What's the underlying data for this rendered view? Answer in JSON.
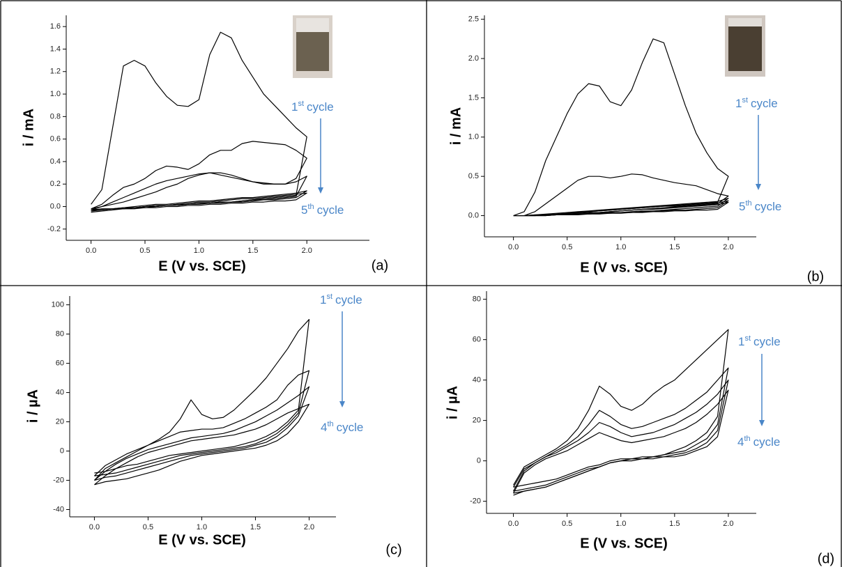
{
  "chart_data": [
    {
      "type": "line",
      "panel_label": "(a)",
      "xlabel": "E (V vs. SCE)",
      "ylabel": "i / mA",
      "line_color": "#000000",
      "x": [
        0,
        0.1,
        0.2,
        0.3,
        0.4,
        0.5,
        0.6,
        0.7,
        0.8,
        0.9,
        1.0,
        1.1,
        1.2,
        1.3,
        1.4,
        1.5,
        1.6,
        1.7,
        1.8,
        1.9,
        2.0,
        1.9,
        1.8,
        1.7,
        1.6,
        1.5,
        1.4,
        1.3,
        1.2,
        1.1,
        1.0,
        0.9,
        0.8,
        0.7,
        0.6,
        0.5,
        0.4,
        0.3,
        0.2,
        0.1,
        0
      ],
      "series": [
        {
          "values": [
            0.02,
            0.15,
            0.7,
            1.25,
            1.3,
            1.25,
            1.1,
            0.98,
            0.9,
            0.89,
            0.95,
            1.35,
            1.55,
            1.5,
            1.3,
            1.15,
            1.0,
            0.9,
            0.8,
            0.7,
            0.62,
            0.1,
            0.09,
            0.08,
            0.07,
            0.06,
            0.05,
            0.04,
            0.04,
            0.03,
            0.03,
            0.02,
            0.01,
            0.01,
            0,
            -0.01,
            -0.01,
            -0.02,
            -0.02,
            -0.03,
            -0.03
          ]
        },
        {
          "values": [
            -0.02,
            0.02,
            0.1,
            0.17,
            0.2,
            0.25,
            0.32,
            0.36,
            0.35,
            0.33,
            0.38,
            0.46,
            0.5,
            0.5,
            0.56,
            0.58,
            0.57,
            0.56,
            0.55,
            0.5,
            0.43,
            0.25,
            0.2,
            0.2,
            0.2,
            0.22,
            0.25,
            0.28,
            0.3,
            0.3,
            0.28,
            0.25,
            0.2,
            0.17,
            0.13,
            0.1,
            0.07,
            0.04,
            0.02,
            0,
            -0.02
          ]
        },
        {
          "values": [
            -0.03,
            0,
            0.04,
            0.08,
            0.12,
            0.16,
            0.2,
            0.23,
            0.25,
            0.27,
            0.29,
            0.3,
            0.28,
            0.26,
            0.24,
            0.22,
            0.21,
            0.2,
            0.2,
            0.22,
            0.27,
            0.09,
            0.08,
            0.07,
            0.06,
            0.06,
            0.05,
            0.04,
            0.04,
            0.03,
            0.03,
            0.02,
            0.02,
            0.01,
            0.01,
            0,
            -0.01,
            -0.01,
            -0.02,
            -0.02,
            -0.03
          ]
        },
        {
          "values": [
            -0.04,
            -0.03,
            -0.02,
            -0.01,
            0,
            0.01,
            0.02,
            0.02,
            0.03,
            0.04,
            0.05,
            0.05,
            0.06,
            0.07,
            0.08,
            0.08,
            0.09,
            0.1,
            0.11,
            0.12,
            0.14,
            0.08,
            0.07,
            0.06,
            0.06,
            0.05,
            0.04,
            0.04,
            0.03,
            0.03,
            0.02,
            0.02,
            0.01,
            0.01,
            0,
            0,
            -0.01,
            -0.02,
            -0.02,
            -0.03,
            -0.04
          ]
        },
        {
          "values": [
            -0.05,
            -0.04,
            -0.03,
            -0.02,
            -0.01,
            0,
            0.01,
            0.01,
            0.02,
            0.03,
            0.04,
            0.04,
            0.05,
            0.06,
            0.07,
            0.07,
            0.08,
            0.09,
            0.1,
            0.11,
            0.12,
            0.06,
            0.05,
            0.05,
            0.04,
            0.04,
            0.03,
            0.03,
            0.02,
            0.02,
            0.01,
            0.01,
            0,
            0,
            -0.01,
            -0.01,
            -0.02,
            -0.02,
            -0.03,
            -0.04,
            -0.05
          ]
        }
      ],
      "xlim": [
        -0.23,
        2.58
      ],
      "ylim": [
        -0.3,
        1.7
      ],
      "xticks": [
        {
          "value": 0,
          "label": "0.0"
        },
        0.5,
        {
          "value": 1,
          "label": "1.0"
        },
        1.5,
        {
          "value": 2,
          "label": "2.0"
        }
      ],
      "yticks": [
        -0.2,
        {
          "value": 0,
          "label": "0.0"
        },
        0.2,
        0.4,
        0.6,
        0.8,
        {
          "value": 1,
          "label": "1.0"
        },
        1.2,
        1.4,
        1.6
      ],
      "annotation": {
        "color": "#4a86c8",
        "start": {
          "number": "1",
          "suffix": "st",
          "text": "cycle"
        },
        "end": {
          "number": "5",
          "suffix": "th",
          "text": "cycle"
        }
      }
    },
    {
      "type": "line",
      "panel_label": "(b)",
      "xlabel": "E (V vs. SCE)",
      "ylabel": "i / mA",
      "line_color": "#000000",
      "x": [
        0,
        0.1,
        0.2,
        0.3,
        0.4,
        0.5,
        0.6,
        0.7,
        0.8,
        0.9,
        1.0,
        1.1,
        1.2,
        1.3,
        1.4,
        1.5,
        1.6,
        1.7,
        1.8,
        1.9,
        2.0,
        1.9,
        1.8,
        1.7,
        1.6,
        1.5,
        1.4,
        1.3,
        1.2,
        1.1,
        1.0,
        0.9,
        0.8,
        0.7,
        0.6,
        0.5,
        0.4,
        0.3,
        0.2,
        0.1,
        0
      ],
      "series": [
        {
          "values": [
            0,
            0.05,
            0.3,
            0.7,
            1.0,
            1.3,
            1.55,
            1.68,
            1.65,
            1.45,
            1.4,
            1.6,
            1.95,
            2.25,
            2.2,
            1.8,
            1.4,
            1.05,
            0.8,
            0.6,
            0.5,
            0.17,
            0.16,
            0.15,
            0.14,
            0.13,
            0.12,
            0.11,
            0.1,
            0.09,
            0.08,
            0.07,
            0.06,
            0.05,
            0.04,
            0.03,
            0.02,
            0.01,
            0,
            0,
            0
          ]
        },
        {
          "values": [
            0,
            0,
            0.05,
            0.15,
            0.25,
            0.35,
            0.45,
            0.5,
            0.5,
            0.48,
            0.5,
            0.53,
            0.52,
            0.48,
            0.45,
            0.42,
            0.4,
            0.38,
            0.33,
            0.28,
            0.25,
            0.15,
            0.14,
            0.13,
            0.12,
            0.11,
            0.1,
            0.09,
            0.08,
            0.07,
            0.06,
            0.05,
            0.04,
            0.03,
            0.03,
            0.02,
            0.01,
            0.01,
            0,
            0,
            0
          ]
        },
        {
          "values": [
            0,
            0,
            0.01,
            0.02,
            0.03,
            0.04,
            0.05,
            0.06,
            0.07,
            0.08,
            0.09,
            0.1,
            0.11,
            0.12,
            0.13,
            0.14,
            0.15,
            0.16,
            0.17,
            0.18,
            0.22,
            0.12,
            0.11,
            0.1,
            0.09,
            0.08,
            0.07,
            0.06,
            0.06,
            0.05,
            0.04,
            0.04,
            0.03,
            0.02,
            0.02,
            0.01,
            0.01,
            0,
            0,
            0,
            0
          ]
        },
        {
          "values": [
            0,
            0,
            0.01,
            0.01,
            0.02,
            0.03,
            0.04,
            0.05,
            0.06,
            0.07,
            0.08,
            0.09,
            0.1,
            0.11,
            0.12,
            0.12,
            0.13,
            0.14,
            0.15,
            0.16,
            0.19,
            0.1,
            0.09,
            0.08,
            0.07,
            0.07,
            0.06,
            0.05,
            0.05,
            0.04,
            0.04,
            0.03,
            0.03,
            0.02,
            0.02,
            0.01,
            0.01,
            0,
            0,
            0,
            0
          ]
        },
        {
          "values": [
            0,
            0,
            0,
            0.01,
            0.01,
            0.02,
            0.03,
            0.04,
            0.04,
            0.05,
            0.06,
            0.07,
            0.08,
            0.08,
            0.09,
            0.1,
            0.11,
            0.12,
            0.13,
            0.14,
            0.17,
            0.08,
            0.07,
            0.07,
            0.06,
            0.06,
            0.05,
            0.05,
            0.04,
            0.04,
            0.03,
            0.03,
            0.02,
            0.02,
            0.01,
            0.01,
            0.01,
            0,
            0,
            0,
            0
          ]
        }
      ],
      "xlim": [
        -0.27,
        2.26
      ],
      "ylim": [
        -0.27,
        2.55
      ],
      "xticks": [
        {
          "value": 0,
          "label": "0.0"
        },
        0.5,
        {
          "value": 1,
          "label": "1.0"
        },
        1.5,
        {
          "value": 2,
          "label": "2.0"
        }
      ],
      "yticks": [
        {
          "value": 0,
          "label": "0.0"
        },
        0.5,
        {
          "value": 1,
          "label": "1.0"
        },
        1.5,
        {
          "value": 2,
          "label": "2.0"
        },
        2.5
      ],
      "annotation": {
        "color": "#4a86c8",
        "start": {
          "number": "1",
          "suffix": "st",
          "text": "cycle"
        },
        "end": {
          "number": "5",
          "suffix": "th",
          "text": "cycle"
        }
      }
    },
    {
      "type": "line",
      "panel_label": "(c)",
      "xlabel": "E (V vs. SCE)",
      "ylabel": "i / µA",
      "line_color": "#000000",
      "x": [
        0,
        0.1,
        0.2,
        0.3,
        0.4,
        0.5,
        0.6,
        0.7,
        0.8,
        0.9,
        1.0,
        1.1,
        1.2,
        1.3,
        1.4,
        1.5,
        1.6,
        1.7,
        1.8,
        1.9,
        2.0,
        1.9,
        1.8,
        1.7,
        1.6,
        1.5,
        1.4,
        1.3,
        1.2,
        1.1,
        1.0,
        0.9,
        0.8,
        0.7,
        0.6,
        0.5,
        0.4,
        0.3,
        0.2,
        0.1,
        0
      ],
      "series": [
        {
          "values": [
            -20,
            -12,
            -8,
            -4,
            0,
            4,
            8,
            13,
            22,
            35,
            25,
            22,
            23,
            28,
            35,
            42,
            50,
            60,
            70,
            82,
            90,
            28,
            20,
            14,
            10,
            7,
            5,
            3,
            2,
            1,
            0,
            -1,
            -2,
            -3,
            -5,
            -7,
            -9,
            -10,
            -12,
            -14,
            -15
          ]
        },
        {
          "values": [
            -17,
            -10,
            -6,
            -2,
            1,
            4,
            7,
            10,
            13,
            14,
            15,
            15,
            16,
            19,
            22,
            26,
            30,
            35,
            45,
            52,
            55,
            26,
            18,
            12,
            8,
            5,
            3,
            2,
            1,
            0,
            -1,
            -2,
            -3,
            -5,
            -7,
            -9,
            -11,
            -13,
            -15,
            -16,
            -17
          ]
        },
        {
          "values": [
            -20,
            -14,
            -9,
            -5,
            -2,
            1,
            3,
            5,
            7,
            9,
            10,
            11,
            12,
            14,
            17,
            20,
            24,
            28,
            33,
            38,
            44,
            24,
            16,
            10,
            6,
            4,
            2,
            1,
            0,
            -1,
            -2,
            -3,
            -5,
            -7,
            -9,
            -11,
            -13,
            -15,
            -17,
            -18,
            -20
          ]
        },
        {
          "values": [
            -23,
            -17,
            -12,
            -8,
            -4,
            -1,
            1,
            3,
            5,
            7,
            8,
            9,
            10,
            11,
            13,
            15,
            18,
            22,
            26,
            29,
            32,
            20,
            12,
            7,
            4,
            2,
            1,
            0,
            -1,
            -2,
            -3,
            -5,
            -7,
            -10,
            -13,
            -15,
            -17,
            -19,
            -20,
            -21,
            -23
          ]
        }
      ],
      "xlim": [
        -0.23,
        2.25
      ],
      "ylim": [
        -45,
        106
      ],
      "xticks": [
        {
          "value": 0,
          "label": "0.0"
        },
        0.5,
        {
          "value": 1,
          "label": "1.0"
        },
        1.5,
        {
          "value": 2,
          "label": "2.0"
        }
      ],
      "yticks": [
        -40,
        -20,
        0,
        20,
        40,
        60,
        80,
        100
      ],
      "annotation": {
        "color": "#4a86c8",
        "start": {
          "number": "1",
          "suffix": "st",
          "text": "cycle"
        },
        "end": {
          "number": "4",
          "suffix": "th",
          "text": "cycle"
        }
      }
    },
    {
      "type": "line",
      "panel_label": "(d)",
      "xlabel": "E (V vs. SCE)",
      "ylabel": "i / µA",
      "line_color": "#000000",
      "x": [
        0,
        0.1,
        0.2,
        0.3,
        0.4,
        0.5,
        0.6,
        0.7,
        0.8,
        0.9,
        1.0,
        1.1,
        1.2,
        1.3,
        1.4,
        1.5,
        1.6,
        1.7,
        1.8,
        1.9,
        2.0,
        1.9,
        1.8,
        1.7,
        1.6,
        1.5,
        1.4,
        1.3,
        1.2,
        1.1,
        1.0,
        0.9,
        0.8,
        0.7,
        0.6,
        0.5,
        0.4,
        0.3,
        0.2,
        0.1,
        0
      ],
      "series": [
        {
          "values": [
            -12,
            -3,
            0,
            3,
            6,
            10,
            16,
            25,
            37,
            33,
            27,
            25,
            28,
            33,
            37,
            40,
            45,
            50,
            55,
            60,
            65,
            22,
            14,
            10,
            7,
            5,
            3,
            2,
            2,
            1,
            1,
            0,
            -2,
            -3,
            -5,
            -7,
            -9,
            -10,
            -11,
            -12,
            -13
          ]
        },
        {
          "values": [
            -13,
            -4,
            -1,
            2,
            5,
            8,
            12,
            18,
            25,
            22,
            18,
            16,
            17,
            19,
            21,
            23,
            26,
            30,
            34,
            40,
            46,
            18,
            11,
            8,
            5,
            4,
            3,
            2,
            1,
            1,
            0,
            -1,
            -3,
            -4,
            -6,
            -8,
            -10,
            -12,
            -13,
            -14,
            -15
          ]
        },
        {
          "values": [
            -15,
            -5,
            -1,
            2,
            4,
            7,
            10,
            14,
            19,
            17,
            14,
            12,
            13,
            14,
            16,
            18,
            21,
            24,
            28,
            33,
            40,
            15,
            9,
            6,
            4,
            3,
            2,
            2,
            1,
            1,
            0,
            -1,
            -3,
            -5,
            -7,
            -9,
            -11,
            -13,
            -14,
            -15,
            -16
          ]
        },
        {
          "values": [
            -16,
            -6,
            -2,
            1,
            3,
            5,
            8,
            11,
            14,
            12,
            10,
            9,
            10,
            11,
            12,
            14,
            16,
            19,
            23,
            28,
            35,
            12,
            7,
            5,
            3,
            2,
            2,
            1,
            1,
            0,
            0,
            -1,
            -3,
            -5,
            -7,
            -9,
            -11,
            -13,
            -14,
            -15,
            -17
          ]
        }
      ],
      "xlim": [
        -0.25,
        2.26
      ],
      "ylim": [
        -26,
        84
      ],
      "xticks": [
        {
          "value": 0,
          "label": "0.0"
        },
        0.5,
        {
          "value": 1,
          "label": "1.0"
        },
        1.5,
        {
          "value": 2,
          "label": "2.0"
        }
      ],
      "yticks": [
        -20,
        0,
        20,
        40,
        60,
        80
      ],
      "annotation": {
        "color": "#4a86c8",
        "start": {
          "number": "1",
          "suffix": "st",
          "text": "cycle"
        },
        "end": {
          "number": "4",
          "suffix": "th",
          "text": "cycle"
        }
      }
    }
  ]
}
